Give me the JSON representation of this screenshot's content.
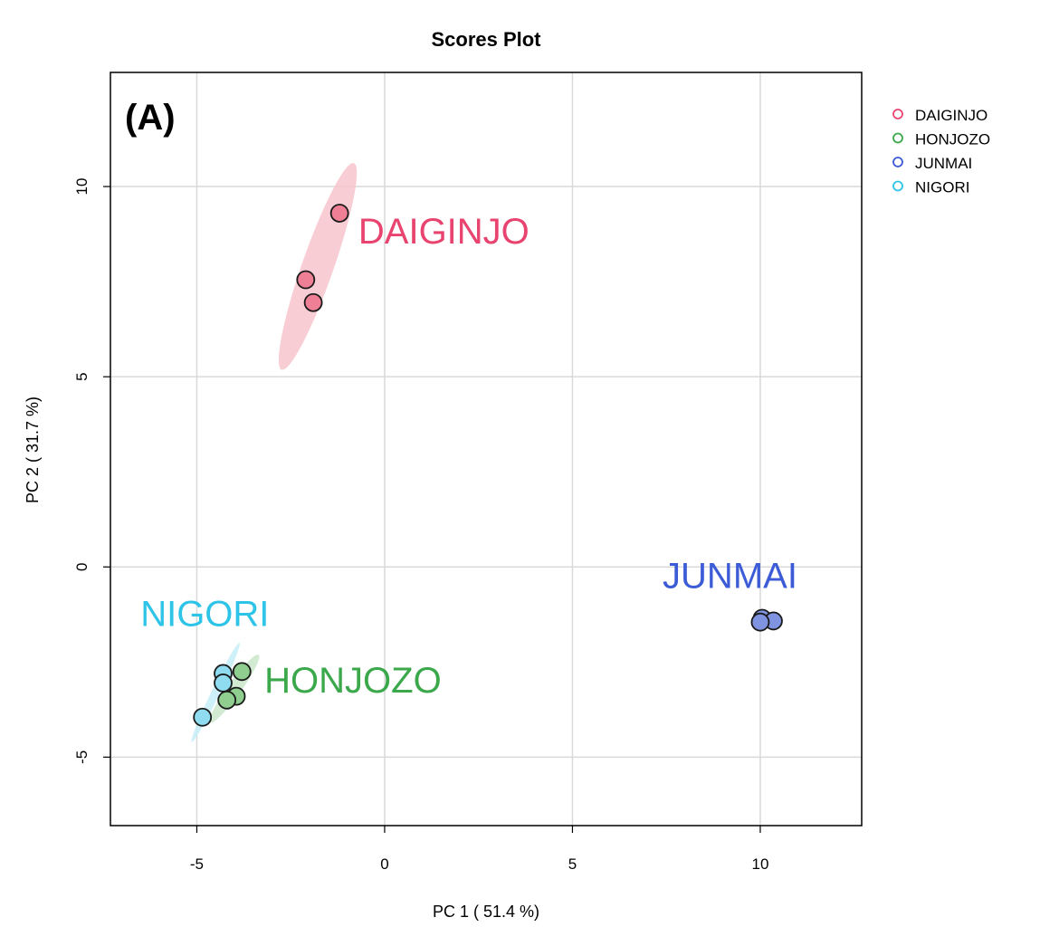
{
  "chart_data": {
    "type": "scatter",
    "title": "Scores Plot",
    "panel_label": "(A)",
    "xlabel": "PC 1 ( 51.4 %)",
    "ylabel": "PC 2 ( 31.7 %)",
    "xlim": [
      -7.3,
      12.7
    ],
    "ylim": [
      -6.8,
      13.0
    ],
    "x_ticks": [
      -5,
      0,
      5,
      10
    ],
    "y_ticks": [
      -5,
      0,
      5,
      10
    ],
    "grid": true,
    "legend_position": "top-right",
    "series": [
      {
        "name": "DAIGINJO",
        "color": "#e8446f",
        "fill": "#ef7f94",
        "ellipse_fill": "#f7c4cc",
        "points": [
          [
            -1.2,
            9.3
          ],
          [
            -2.1,
            7.55
          ],
          [
            -1.9,
            6.95
          ]
        ],
        "ellipse": {
          "cx": -1.78,
          "cy": 7.9,
          "rx": 2.88,
          "ry": 0.42,
          "angle_deg": 70.5
        },
        "label_position": [
          -0.7,
          8.5
        ]
      },
      {
        "name": "HONJOZO",
        "color": "#3aa84b",
        "fill": "#8fce8f",
        "ellipse_fill": "#c9e6c9",
        "points": [
          [
            -3.8,
            -2.75
          ],
          [
            -3.95,
            -3.4
          ],
          [
            -4.2,
            -3.5
          ]
        ],
        "ellipse": {
          "cx": -4.0,
          "cy": -3.2,
          "rx": 1.1,
          "ry": 0.18,
          "angle_deg": 54
        },
        "label_position": [
          -3.2,
          -3.3
        ]
      },
      {
        "name": "JUNMAI",
        "color": "#3c5bd6",
        "fill": "#7f93e0",
        "ellipse_fill": "#b9c5ee",
        "points": [
          [
            10.05,
            -1.35
          ],
          [
            10.35,
            -1.42
          ],
          [
            10.0,
            -1.45
          ]
        ],
        "ellipse": {
          "cx": 10.13,
          "cy": -1.41,
          "rx": 0.34,
          "ry": 0.07,
          "angle_deg": -12
        },
        "label_position": [
          7.4,
          -0.55
        ]
      },
      {
        "name": "NIGORI",
        "color": "#2ec4e8",
        "fill": "#8fdcf0",
        "ellipse_fill": "#c6edf7",
        "points": [
          [
            -4.3,
            -2.8
          ],
          [
            -4.3,
            -3.05
          ],
          [
            -4.85,
            -3.95
          ]
        ],
        "ellipse": {
          "cx": -4.5,
          "cy": -3.3,
          "rx": 1.45,
          "ry": 0.11,
          "angle_deg": 64
        },
        "label_position": [
          -6.5,
          -1.55
        ]
      }
    ]
  }
}
